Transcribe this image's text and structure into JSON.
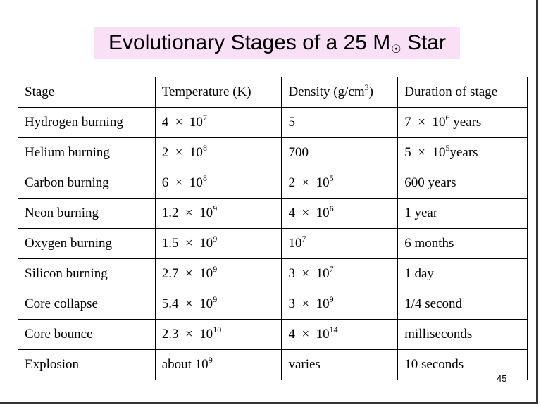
{
  "title": {
    "text": "Evolutionary Stages of a 25 M",
    "symbol": "☉",
    "suffix": " Star"
  },
  "table": {
    "headers": [
      {
        "pre": "Stage"
      },
      {
        "pre": "Temperature (K)"
      },
      {
        "pre": "Density (g/cm",
        "sup": "3",
        "post": ")"
      },
      {
        "pre": "Duration of stage"
      }
    ],
    "rows": [
      [
        {
          "pre": "Hydrogen burning"
        },
        {
          "pre": "4  ×  10",
          "sup": "7"
        },
        {
          "pre": "5"
        },
        {
          "pre": "7  ×  10",
          "sup": "6",
          "post": " years"
        }
      ],
      [
        {
          "pre": "Helium burning"
        },
        {
          "pre": "2  ×  10",
          "sup": "8"
        },
        {
          "pre": "700"
        },
        {
          "pre": "5  ×  10",
          "sup": "5",
          "post": "years"
        }
      ],
      [
        {
          "pre": "Carbon burning"
        },
        {
          "pre": "6  ×  10",
          "sup": "8"
        },
        {
          "pre": "2  ×  10",
          "sup": "5"
        },
        {
          "pre": "600 years"
        }
      ],
      [
        {
          "pre": "Neon burning"
        },
        {
          "pre": "1.2  ×  10",
          "sup": "9"
        },
        {
          "pre": "4  ×  10",
          "sup": "6"
        },
        {
          "pre": "1 year"
        }
      ],
      [
        {
          "pre": "Oxygen burning"
        },
        {
          "pre": "1.5  ×  10",
          "sup": "9"
        },
        {
          "pre": "10",
          "sup": "7"
        },
        {
          "pre": "6 months"
        }
      ],
      [
        {
          "pre": "Silicon burning"
        },
        {
          "pre": "2.7  ×  10",
          "sup": "9"
        },
        {
          "pre": "3  ×  10",
          "sup": "7"
        },
        {
          "pre": "1 day"
        }
      ],
      [
        {
          "pre": "Core collapse"
        },
        {
          "pre": "5.4  ×  10",
          "sup": "9"
        },
        {
          "pre": "3  ×  10",
          "sup": "9"
        },
        {
          "pre": "1/4 second"
        }
      ],
      [
        {
          "pre": "Core bounce"
        },
        {
          "pre": "2.3  ×  10",
          "sup": "10"
        },
        {
          "pre": "4  ×  10",
          "sup": "14"
        },
        {
          "pre": "milliseconds"
        }
      ],
      [
        {
          "pre": "Explosion"
        },
        {
          "pre": "about 10",
          "sup": "9"
        },
        {
          "pre": "varies"
        },
        {
          "pre": "10 seconds"
        }
      ]
    ]
  },
  "page_number": "45",
  "colors": {
    "title_bg": "#f9e0f7",
    "frame": "#333333"
  }
}
